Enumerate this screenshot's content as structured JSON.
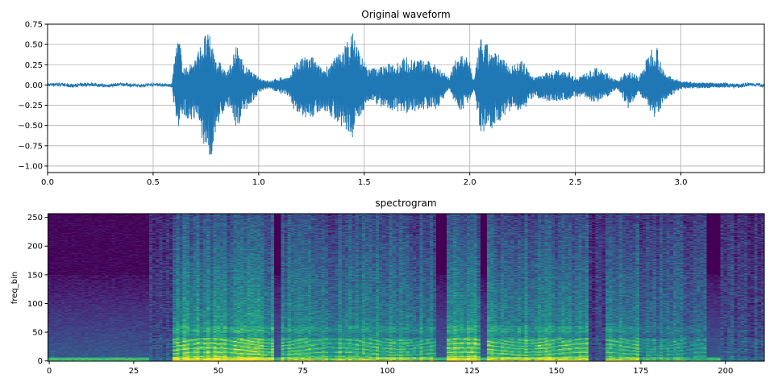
{
  "chart_data": [
    {
      "type": "line",
      "title": "Original waveform",
      "xlabel": "",
      "ylabel": "",
      "xlim": [
        0,
        3.395
      ],
      "ylim": [
        -1.08,
        0.75
      ],
      "xticks": [
        "0.0",
        "0.5",
        "1.0",
        "1.5",
        "2.0",
        "2.5",
        "3.0"
      ],
      "xtick_values": [
        0,
        0.5,
        1.0,
        1.5,
        2.0,
        2.5,
        3.0
      ],
      "yticks": [
        "0.75",
        "0.50",
        "0.25",
        "0.00",
        "−0.25",
        "−0.50",
        "−0.75",
        "−1.00"
      ],
      "ytick_values": [
        0.75,
        0.5,
        0.25,
        0,
        -0.25,
        -0.5,
        -0.75,
        -1.0
      ],
      "grid": true,
      "color": "#1f77b4",
      "envelope": {
        "t": [
          0,
          0.59,
          0.6,
          0.62,
          0.65,
          0.7,
          0.75,
          0.77,
          0.8,
          0.85,
          0.9,
          0.93,
          1.0,
          1.05,
          1.1,
          1.15,
          1.17,
          1.25,
          1.3,
          1.35,
          1.42,
          1.45,
          1.48,
          1.52,
          1.6,
          1.7,
          1.8,
          1.85,
          1.9,
          1.95,
          2.0,
          2.02,
          2.05,
          2.1,
          2.2,
          2.25,
          2.3,
          2.35,
          2.45,
          2.5,
          2.55,
          2.6,
          2.65,
          2.7,
          2.75,
          2.8,
          2.85,
          2.88,
          2.92,
          3.0,
          3.1,
          3.395
        ],
        "max": [
          0.02,
          0.02,
          0.35,
          0.62,
          0.2,
          0.35,
          0.66,
          0.6,
          0.35,
          0.15,
          0.52,
          0.25,
          0.1,
          0.05,
          0.1,
          0.1,
          0.3,
          0.37,
          0.2,
          0.3,
          0.55,
          0.67,
          0.4,
          0.2,
          0.25,
          0.35,
          0.3,
          0.25,
          0.1,
          0.42,
          0.3,
          0.05,
          0.6,
          0.45,
          0.25,
          0.3,
          0.1,
          0.15,
          0.2,
          0.1,
          0.15,
          0.22,
          0.15,
          0.05,
          0.2,
          0.1,
          0.4,
          0.57,
          0.15,
          0.05,
          0.03,
          0.02
        ],
        "min": [
          -0.02,
          -0.02,
          -0.3,
          -0.52,
          -0.4,
          -0.45,
          -0.8,
          -1.0,
          -0.55,
          -0.25,
          -0.55,
          -0.35,
          -0.1,
          -0.05,
          -0.1,
          -0.15,
          -0.35,
          -0.45,
          -0.3,
          -0.4,
          -0.6,
          -0.72,
          -0.4,
          -0.2,
          -0.3,
          -0.35,
          -0.3,
          -0.3,
          -0.05,
          -0.35,
          -0.2,
          -0.05,
          -0.6,
          -0.55,
          -0.3,
          -0.4,
          -0.15,
          -0.2,
          -0.2,
          -0.15,
          -0.15,
          -0.25,
          -0.15,
          -0.05,
          -0.3,
          -0.1,
          -0.3,
          -0.45,
          -0.2,
          -0.05,
          -0.04,
          -0.02
        ]
      }
    },
    {
      "type": "heatmap",
      "title": "spectrogram",
      "xlabel": "",
      "ylabel": "freq_bin",
      "xlim": [
        -0.5,
        211.5
      ],
      "ylim": [
        -0.5,
        256.5
      ],
      "frames": 212,
      "freq_bins": 257,
      "colormap": "viridis",
      "xticks": [
        "0",
        "25",
        "50",
        "75",
        "100",
        "125",
        "150",
        "175",
        "200"
      ],
      "xtick_values": [
        0,
        25,
        50,
        75,
        100,
        125,
        150,
        175,
        200
      ],
      "yticks": [
        "0",
        "50",
        "100",
        "150",
        "200",
        "250"
      ],
      "ytick_values": [
        0,
        50,
        100,
        150,
        200,
        250
      ],
      "frame_activity": {
        "start": [
          0,
          30,
          37,
          67,
          69,
          115,
          118,
          128,
          130,
          160,
          165,
          175,
          195,
          199
        ],
        "end": [
          30,
          37,
          67,
          69,
          115,
          118,
          128,
          130,
          160,
          165,
          175,
          195,
          199,
          212
        ],
        "level": [
          0.0,
          0.3,
          0.9,
          0.05,
          0.75,
          0.05,
          0.9,
          0.05,
          0.85,
          0.2,
          0.8,
          0.6,
          0.05,
          0.3
        ]
      }
    }
  ]
}
